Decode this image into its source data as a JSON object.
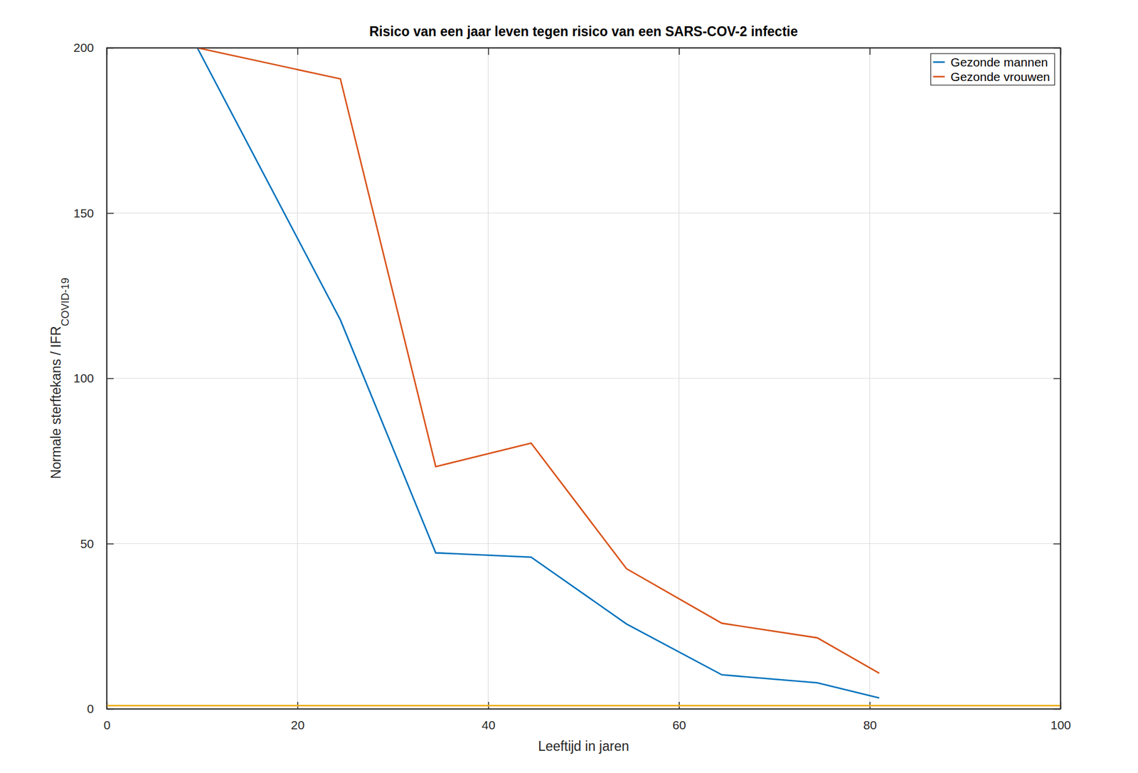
{
  "chart_data": {
    "type": "line",
    "title": "Risico van een jaar leven tegen risico van een SARS-COV-2 infectie",
    "xlabel": "Leeftijd in jaren",
    "ylabel": "Normale sterftekans / IFR",
    "ylabel_sub": "COVID-19",
    "xlim": [
      0,
      100
    ],
    "xticks": [
      0,
      20,
      40,
      60,
      80,
      100
    ],
    "ylim": [
      0,
      200
    ],
    "yticks": [
      0,
      50,
      100,
      150,
      200
    ],
    "grid": true,
    "legend": "northeast",
    "series": [
      {
        "name": "Gezonde mannen",
        "color": "#0072BD",
        "x": [
          9.5,
          24.5,
          34.5,
          44.5,
          54.5,
          64.5,
          74.5,
          81
        ],
        "values": [
          200,
          117.7,
          47.2,
          45.9,
          25.7,
          10.3,
          7.9,
          3.3
        ]
      },
      {
        "name": "Gezonde vrouwen",
        "color": "#D95319",
        "x": [
          9.5,
          24.5,
          34.5,
          44.5,
          54.5,
          64.5,
          74.5,
          81
        ],
        "values": [
          200,
          190.6,
          73.3,
          80.4,
          42.4,
          25.9,
          21.5,
          10.8
        ]
      },
      {
        "color": "#EDB120",
        "x": [
          0,
          100
        ],
        "values": [
          1,
          1
        ]
      }
    ]
  }
}
